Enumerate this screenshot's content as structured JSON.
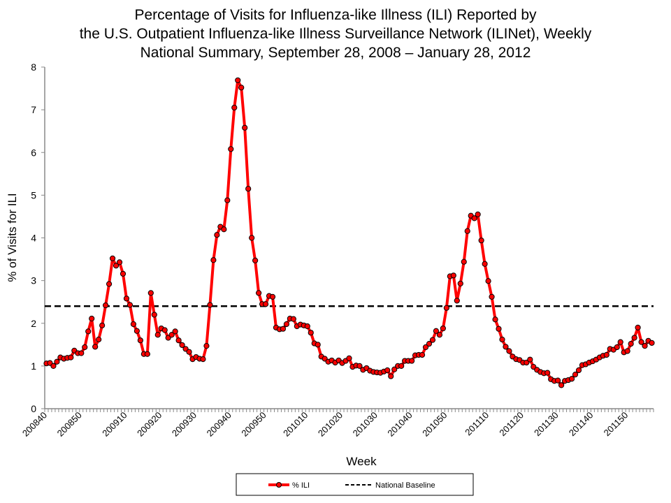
{
  "chart_data": {
    "type": "line",
    "title_lines": [
      "Percentage of Visits for Influenza-like Illness (ILI) Reported by",
      "the U.S. Outpatient Influenza-like Illness Surveillance Network (ILINet), Weekly",
      "National Summary, September 28, 2008 – January 28, 2012"
    ],
    "xlabel": "Week",
    "ylabel": "% of Visits for ILI",
    "ylim": [
      0,
      8
    ],
    "yticks": [
      "0",
      "1",
      "2",
      "3",
      "4",
      "5",
      "6",
      "7",
      "8"
    ],
    "xtick_labels": [
      "200840",
      "200850",
      "200910",
      "200920",
      "200930",
      "200940",
      "200950",
      "201010",
      "201020",
      "201030",
      "201040",
      "201050",
      "201110",
      "201120",
      "201130",
      "201140",
      "201150"
    ],
    "weeks_per_year": {
      "2008": 53,
      "2009": 52,
      "2010": 52,
      "2011": 52
    },
    "start_week": "200840",
    "grid": false,
    "legend_position": "bottom",
    "series": [
      {
        "name": "% ILI",
        "color": "#ff0000",
        "values": [
          1.06,
          1.07,
          1.0,
          1.1,
          1.2,
          1.17,
          1.19,
          1.2,
          1.36,
          1.3,
          1.3,
          1.44,
          1.81,
          2.11,
          1.45,
          1.62,
          1.95,
          2.42,
          2.92,
          3.52,
          3.35,
          3.43,
          3.16,
          2.58,
          2.43,
          1.98,
          1.82,
          1.6,
          1.28,
          1.28,
          2.71,
          2.2,
          1.73,
          1.88,
          1.84,
          1.66,
          1.73,
          1.81,
          1.6,
          1.49,
          1.4,
          1.33,
          1.16,
          1.21,
          1.17,
          1.16,
          1.47,
          2.43,
          3.48,
          4.07,
          4.26,
          4.2,
          4.88,
          6.08,
          7.05,
          7.69,
          7.52,
          6.58,
          5.15,
          4.0,
          3.47,
          2.71,
          2.45,
          2.45,
          2.64,
          2.62,
          1.9,
          1.86,
          1.87,
          1.98,
          2.11,
          2.1,
          1.93,
          1.97,
          1.95,
          1.93,
          1.78,
          1.53,
          1.5,
          1.22,
          1.17,
          1.1,
          1.13,
          1.08,
          1.13,
          1.07,
          1.12,
          1.18,
          0.98,
          1.01,
          1.0,
          0.91,
          0.95,
          0.89,
          0.86,
          0.85,
          0.84,
          0.87,
          0.9,
          0.76,
          0.92,
          1.0,
          1.0,
          1.12,
          1.12,
          1.12,
          1.25,
          1.26,
          1.26,
          1.44,
          1.52,
          1.61,
          1.82,
          1.73,
          1.88,
          2.36,
          3.1,
          3.12,
          2.53,
          2.93,
          3.44,
          4.16,
          4.52,
          4.46,
          4.55,
          3.94,
          3.39,
          2.99,
          2.62,
          2.09,
          1.87,
          1.62,
          1.45,
          1.35,
          1.22,
          1.16,
          1.14,
          1.08,
          1.08,
          1.15,
          0.98,
          0.91,
          0.86,
          0.83,
          0.84,
          0.69,
          0.65,
          0.66,
          0.55,
          0.65,
          0.67,
          0.7,
          0.8,
          0.9,
          1.02,
          1.04,
          1.08,
          1.11,
          1.15,
          1.2,
          1.24,
          1.26,
          1.4,
          1.38,
          1.44,
          1.56,
          1.32,
          1.35,
          1.52,
          1.66,
          1.9,
          1.56,
          1.47,
          1.59,
          1.54
        ]
      },
      {
        "name": "National Baseline",
        "color": "#000000",
        "style": "dashed",
        "value": 2.4
      }
    ]
  }
}
